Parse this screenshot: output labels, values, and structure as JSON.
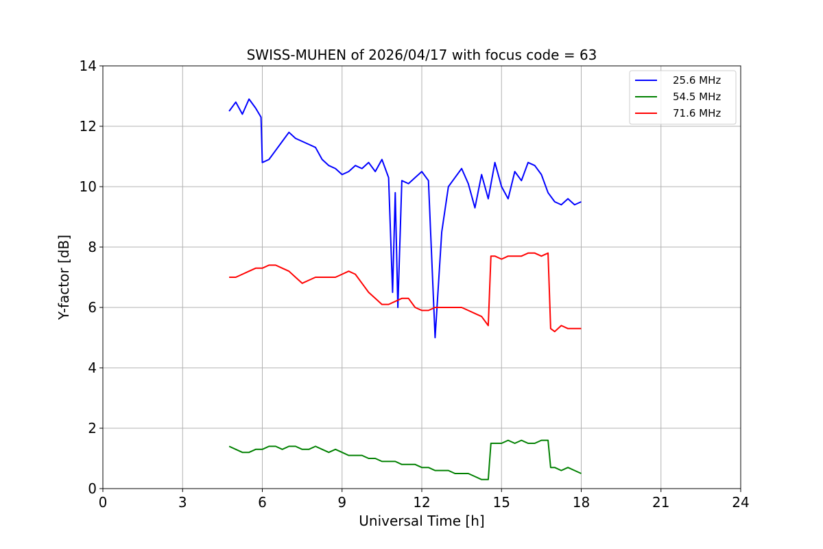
{
  "chart_data": {
    "type": "line",
    "title": "SWISS-MUHEN of 2026/04/17 with focus code = 63",
    "xlabel": "Universal Time [h]",
    "ylabel": "Y-factor [dB]",
    "xlim": [
      0,
      24
    ],
    "ylim": [
      0,
      14
    ],
    "xticks": [
      0,
      3,
      6,
      9,
      12,
      15,
      18,
      21,
      24
    ],
    "yticks": [
      0,
      2,
      4,
      6,
      8,
      10,
      12,
      14
    ],
    "grid": true,
    "legend_position": "top-right",
    "series": [
      {
        "name": "25.6 MHz",
        "color": "#0000ff",
        "x": [
          4.75,
          5.0,
          5.25,
          5.5,
          5.75,
          5.95,
          6.0,
          6.25,
          6.5,
          6.75,
          7.0,
          7.25,
          7.5,
          7.75,
          8.0,
          8.25,
          8.5,
          8.75,
          9.0,
          9.25,
          9.5,
          9.75,
          10.0,
          10.25,
          10.5,
          10.75,
          10.9,
          11.0,
          11.1,
          11.25,
          11.5,
          11.75,
          12.0,
          12.25,
          12.5,
          12.75,
          13.0,
          13.25,
          13.5,
          13.75,
          14.0,
          14.25,
          14.5,
          14.75,
          15.0,
          15.25,
          15.5,
          15.75,
          16.0,
          16.25,
          16.5,
          16.75,
          17.0,
          17.25,
          17.5,
          17.75,
          18.0
        ],
        "y": [
          12.5,
          12.8,
          12.4,
          12.9,
          12.6,
          12.3,
          10.8,
          10.9,
          11.2,
          11.5,
          11.8,
          11.6,
          11.5,
          11.4,
          11.3,
          10.9,
          10.7,
          10.6,
          10.4,
          10.5,
          10.7,
          10.6,
          10.8,
          10.5,
          10.9,
          10.3,
          6.5,
          9.8,
          6.0,
          10.2,
          10.1,
          10.3,
          10.5,
          10.2,
          5.0,
          8.5,
          10.0,
          10.3,
          10.6,
          10.1,
          9.3,
          10.4,
          9.6,
          10.8,
          10.0,
          9.6,
          10.5,
          10.2,
          10.8,
          10.7,
          10.4,
          9.8,
          9.5,
          9.4,
          9.6,
          9.4,
          9.5
        ]
      },
      {
        "name": "54.5 MHz",
        "color": "#008000",
        "x": [
          4.75,
          5.0,
          5.25,
          5.5,
          5.75,
          6.0,
          6.25,
          6.5,
          6.75,
          7.0,
          7.25,
          7.5,
          7.75,
          8.0,
          8.25,
          8.5,
          8.75,
          9.0,
          9.25,
          9.5,
          9.75,
          10.0,
          10.25,
          10.5,
          10.75,
          11.0,
          11.25,
          11.5,
          11.75,
          12.0,
          12.25,
          12.5,
          12.75,
          13.0,
          13.25,
          13.5,
          13.75,
          14.0,
          14.25,
          14.5,
          14.6,
          14.75,
          15.0,
          15.25,
          15.5,
          15.75,
          16.0,
          16.25,
          16.5,
          16.75,
          16.85,
          17.0,
          17.25,
          17.5,
          17.75,
          18.0
        ],
        "y": [
          1.4,
          1.3,
          1.2,
          1.2,
          1.3,
          1.3,
          1.4,
          1.4,
          1.3,
          1.4,
          1.4,
          1.3,
          1.3,
          1.4,
          1.3,
          1.2,
          1.3,
          1.2,
          1.1,
          1.1,
          1.1,
          1.0,
          1.0,
          0.9,
          0.9,
          0.9,
          0.8,
          0.8,
          0.8,
          0.7,
          0.7,
          0.6,
          0.6,
          0.6,
          0.5,
          0.5,
          0.5,
          0.4,
          0.3,
          0.3,
          1.5,
          1.5,
          1.5,
          1.6,
          1.5,
          1.6,
          1.5,
          1.5,
          1.6,
          1.6,
          0.7,
          0.7,
          0.6,
          0.7,
          0.6,
          0.5
        ]
      },
      {
        "name": "71.6 MHz",
        "color": "#ff0000",
        "x": [
          4.75,
          5.0,
          5.25,
          5.5,
          5.75,
          6.0,
          6.25,
          6.5,
          6.75,
          7.0,
          7.25,
          7.5,
          7.75,
          8.0,
          8.25,
          8.5,
          8.75,
          9.0,
          9.25,
          9.5,
          9.75,
          10.0,
          10.25,
          10.5,
          10.75,
          11.0,
          11.25,
          11.5,
          11.75,
          12.0,
          12.25,
          12.5,
          12.75,
          13.0,
          13.25,
          13.5,
          13.75,
          14.0,
          14.25,
          14.5,
          14.6,
          14.75,
          15.0,
          15.25,
          15.5,
          15.75,
          16.0,
          16.25,
          16.5,
          16.75,
          16.85,
          17.0,
          17.25,
          17.5,
          17.75,
          18.0
        ],
        "y": [
          7.0,
          7.0,
          7.1,
          7.2,
          7.3,
          7.3,
          7.4,
          7.4,
          7.3,
          7.2,
          7.0,
          6.8,
          6.9,
          7.0,
          7.0,
          7.0,
          7.0,
          7.1,
          7.2,
          7.1,
          6.8,
          6.5,
          6.3,
          6.1,
          6.1,
          6.2,
          6.3,
          6.3,
          6.0,
          5.9,
          5.9,
          6.0,
          6.0,
          6.0,
          6.0,
          6.0,
          5.9,
          5.8,
          5.7,
          5.4,
          7.7,
          7.7,
          7.6,
          7.7,
          7.7,
          7.7,
          7.8,
          7.8,
          7.7,
          7.8,
          5.3,
          5.2,
          5.4,
          5.3,
          5.3,
          5.3
        ]
      }
    ]
  }
}
